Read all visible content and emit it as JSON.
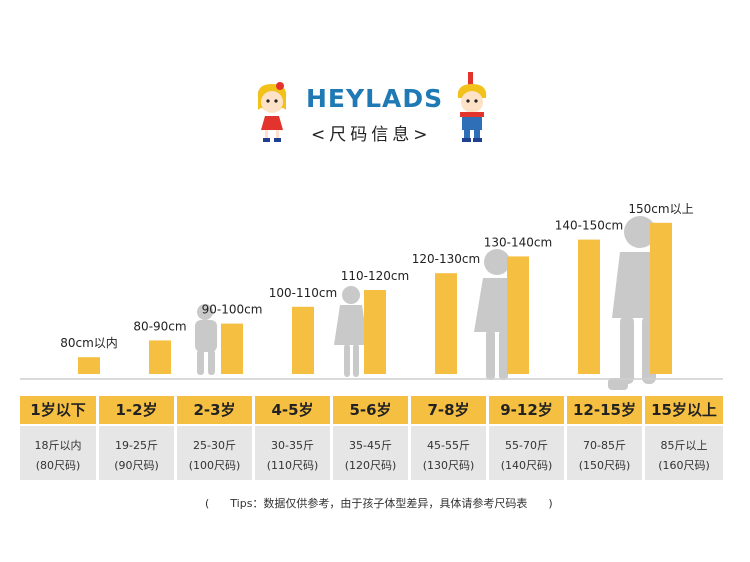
{
  "header": {
    "brand": "HEYLADS",
    "subtitle": "<尺码信息>"
  },
  "colors": {
    "bar": "#f5c042",
    "brand": "#1f79b5",
    "silhouette": "#c9c9c9",
    "weight_cell": "#e6e6e6"
  },
  "chart_data": {
    "type": "bar",
    "categories": [
      "1岁以下",
      "1-2岁",
      "2-3岁",
      "4-5岁",
      "5-6岁",
      "7-8岁",
      "9-12岁",
      "12-15岁",
      "15岁以上"
    ],
    "height_labels": [
      "80cm以内",
      "80-90cm",
      "90-100cm",
      "100-110cm",
      "110-120cm",
      "120-130cm",
      "130-140cm",
      "140-150cm",
      "150cm以上"
    ],
    "values": [
      80,
      90,
      100,
      110,
      120,
      130,
      140,
      150,
      160
    ],
    "weight_jin": [
      "18斤以内",
      "19-25斤",
      "25-30斤",
      "30-35斤",
      "35-45斤",
      "45-55斤",
      "55-70斤",
      "70-85斤",
      "85斤以上"
    ],
    "sizes": [
      "(80尺码)",
      "(90尺码)",
      "(100尺码)",
      "(110尺码)",
      "(120尺码)",
      "(130尺码)",
      "(140尺码)",
      "(150尺码)",
      "(160尺码)"
    ]
  },
  "footer": {
    "tips": "(      Tips：数据仅供参考，由于孩子体型差异，具体请参考尺码表      )"
  }
}
